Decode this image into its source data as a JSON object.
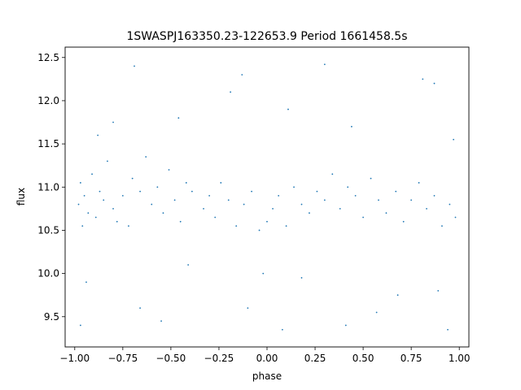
{
  "chart_data": {
    "type": "scatter",
    "title": "1SWASPJ163350.23-122653.9 Period 1661458.5s",
    "xlabel": "phase",
    "ylabel": "flux",
    "xlim": [
      -1.05,
      1.05
    ],
    "ylim": [
      9.15,
      12.62
    ],
    "xticks": [
      -1.0,
      -0.75,
      -0.5,
      -0.25,
      0.0,
      0.25,
      0.5,
      0.75,
      1.0
    ],
    "xtick_labels": [
      "−1.00",
      "−0.75",
      "−0.50",
      "−0.25",
      "0.00",
      "0.25",
      "0.50",
      "0.75",
      "1.00"
    ],
    "yticks": [
      9.5,
      10.0,
      10.5,
      11.0,
      11.5,
      12.0,
      12.5
    ],
    "ytick_labels": [
      "9.5",
      "10.0",
      "10.5",
      "11.0",
      "11.5",
      "12.0",
      "12.5"
    ],
    "grid": false,
    "marker_color": "#1f77b4",
    "series": [
      {
        "profile": "phase-folded light curve, mirrored over phase -1 to 1; flux values mostly 10.4-11.3, with more scattered points down to about 9.35 and up to about 12.45",
        "points": [
          [
            -0.98,
            10.8
          ],
          [
            -0.97,
            11.05
          ],
          [
            -0.96,
            10.55
          ],
          [
            -0.95,
            10.9
          ],
          [
            -0.93,
            10.7
          ],
          [
            -0.91,
            11.15
          ],
          [
            -0.89,
            10.65
          ],
          [
            -0.87,
            10.95
          ],
          [
            -0.85,
            10.85
          ],
          [
            -0.83,
            11.3
          ],
          [
            -0.8,
            10.75
          ],
          [
            -0.78,
            10.6
          ],
          [
            -0.75,
            10.9
          ],
          [
            -0.72,
            10.55
          ],
          [
            -0.7,
            11.1
          ],
          [
            -0.66,
            10.95
          ],
          [
            -0.63,
            11.35
          ],
          [
            -0.6,
            10.8
          ],
          [
            -0.57,
            11.0
          ],
          [
            -0.54,
            10.7
          ],
          [
            -0.51,
            11.2
          ],
          [
            -0.48,
            10.85
          ],
          [
            -0.45,
            10.6
          ],
          [
            -0.42,
            11.05
          ],
          [
            -0.39,
            10.95
          ],
          [
            -0.33,
            10.75
          ],
          [
            -0.3,
            10.9
          ],
          [
            -0.27,
            10.65
          ],
          [
            -0.24,
            11.05
          ],
          [
            -0.2,
            10.85
          ],
          [
            -0.16,
            10.55
          ],
          [
            -0.12,
            10.8
          ],
          [
            -0.08,
            10.95
          ],
          [
            -0.04,
            10.5
          ],
          [
            0.0,
            10.6
          ],
          [
            0.03,
            10.75
          ],
          [
            0.06,
            10.9
          ],
          [
            0.1,
            10.55
          ],
          [
            0.14,
            11.0
          ],
          [
            0.18,
            10.8
          ],
          [
            0.22,
            10.7
          ],
          [
            0.26,
            10.95
          ],
          [
            0.3,
            10.85
          ],
          [
            0.34,
            11.15
          ],
          [
            0.38,
            10.75
          ],
          [
            0.42,
            11.0
          ],
          [
            0.46,
            10.9
          ],
          [
            0.5,
            10.65
          ],
          [
            0.54,
            11.1
          ],
          [
            0.58,
            10.85
          ],
          [
            0.62,
            10.7
          ],
          [
            0.67,
            10.95
          ],
          [
            0.71,
            10.6
          ],
          [
            0.75,
            10.85
          ],
          [
            0.79,
            11.05
          ],
          [
            0.83,
            10.75
          ],
          [
            0.87,
            10.9
          ],
          [
            0.91,
            10.55
          ],
          [
            0.95,
            10.8
          ],
          [
            0.98,
            10.65
          ],
          [
            -0.88,
            11.6
          ],
          [
            -0.8,
            11.75
          ],
          [
            -0.69,
            12.4
          ],
          [
            -0.46,
            11.8
          ],
          [
            -0.19,
            12.1
          ],
          [
            -0.13,
            12.3
          ],
          [
            0.11,
            11.9
          ],
          [
            0.3,
            12.42
          ],
          [
            0.44,
            11.7
          ],
          [
            0.81,
            12.25
          ],
          [
            0.87,
            12.2
          ],
          [
            0.97,
            11.55
          ],
          [
            -0.97,
            9.4
          ],
          [
            -0.94,
            9.9
          ],
          [
            -0.66,
            9.6
          ],
          [
            -0.55,
            9.45
          ],
          [
            -0.41,
            10.1
          ],
          [
            -0.1,
            9.6
          ],
          [
            -0.02,
            10.0
          ],
          [
            0.08,
            9.35
          ],
          [
            0.18,
            9.95
          ],
          [
            0.41,
            9.4
          ],
          [
            0.57,
            9.55
          ],
          [
            0.68,
            9.75
          ],
          [
            0.89,
            9.8
          ],
          [
            0.94,
            9.35
          ]
        ]
      }
    ]
  }
}
